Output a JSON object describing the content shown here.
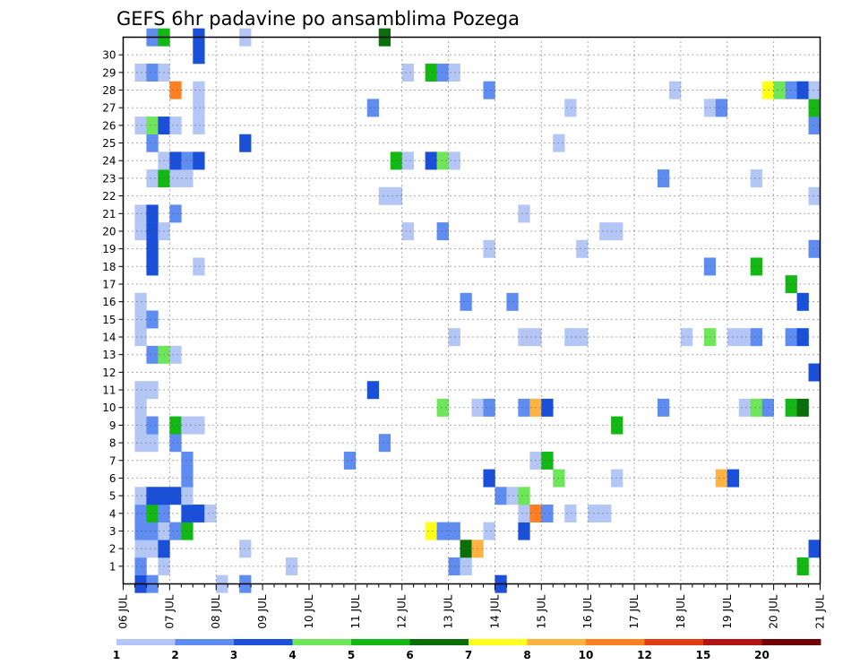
{
  "chart_data": {
    "type": "heatmap",
    "title": "GEFS 6hr padavine po ansamblima Pozega",
    "x_tick_labels": [
      "06 JUL",
      "07 JUL",
      "08 JUL",
      "09 JUL",
      "10 JUL",
      "11 JUL",
      "12 JUL",
      "13 JUL",
      "14 JUL",
      "15 JUL",
      "16 JUL",
      "17 JUL",
      "18 JUL",
      "19 JUL",
      "20 JUL",
      "21 JUL"
    ],
    "y_tick_labels": [
      "1",
      "2",
      "3",
      "4",
      "5",
      "6",
      "7",
      "8",
      "9",
      "10",
      "11",
      "12",
      "13",
      "14",
      "15",
      "16",
      "17",
      "18",
      "19",
      "20",
      "21",
      "22",
      "23",
      "24",
      "25",
      "26",
      "27",
      "28",
      "29",
      "30"
    ],
    "xlim": [
      0,
      60
    ],
    "ylim": [
      0,
      30
    ],
    "grid": true,
    "colorbar": {
      "labels": [
        "1",
        "2",
        "3",
        "4",
        "5",
        "6",
        "7",
        "8",
        "10",
        "12",
        "15",
        "20"
      ],
      "colors": [
        "#b3c6f5",
        "#5f8cf0",
        "#1a4fd9",
        "#6fe65a",
        "#14b814",
        "#0a6e0a",
        "#ffff1a",
        "#ffb340",
        "#ff8020",
        "#e23c14",
        "#b01414",
        "#700000"
      ]
    },
    "cells": [
      [
        1,
        0,
        3
      ],
      [
        2,
        0,
        2
      ],
      [
        8,
        0,
        1
      ],
      [
        10,
        0,
        2
      ],
      [
        32,
        0,
        3
      ],
      [
        1,
        1,
        2
      ],
      [
        3,
        1,
        1
      ],
      [
        14,
        1,
        1
      ],
      [
        28,
        1,
        2
      ],
      [
        29,
        1,
        1
      ],
      [
        58,
        1,
        5
      ],
      [
        1,
        2,
        1
      ],
      [
        2,
        2,
        1
      ],
      [
        3,
        2,
        3
      ],
      [
        10,
        2,
        1
      ],
      [
        29,
        2,
        6
      ],
      [
        30,
        2,
        8
      ],
      [
        59,
        2,
        3
      ],
      [
        1,
        3,
        2
      ],
      [
        2,
        3,
        2
      ],
      [
        3,
        3,
        1
      ],
      [
        4,
        3,
        2
      ],
      [
        5,
        3,
        5
      ],
      [
        26,
        3,
        7
      ],
      [
        27,
        3,
        2
      ],
      [
        28,
        3,
        2
      ],
      [
        31,
        3,
        1
      ],
      [
        34,
        3,
        3
      ],
      [
        1,
        4,
        2
      ],
      [
        2,
        4,
        5
      ],
      [
        3,
        4,
        2
      ],
      [
        5,
        4,
        3
      ],
      [
        6,
        4,
        3
      ],
      [
        7,
        4,
        1
      ],
      [
        34,
        4,
        1
      ],
      [
        35,
        4,
        9
      ],
      [
        36,
        4,
        2
      ],
      [
        38,
        4,
        1
      ],
      [
        40,
        4,
        1
      ],
      [
        41,
        4,
        1
      ],
      [
        1,
        5,
        1
      ],
      [
        2,
        5,
        3
      ],
      [
        3,
        5,
        3
      ],
      [
        4,
        5,
        3
      ],
      [
        5,
        5,
        1
      ],
      [
        32,
        5,
        2
      ],
      [
        33,
        5,
        1
      ],
      [
        34,
        5,
        4
      ],
      [
        5,
        6,
        2
      ],
      [
        31,
        6,
        3
      ],
      [
        37,
        6,
        4
      ],
      [
        42,
        6,
        1
      ],
      [
        51,
        6,
        8
      ],
      [
        52,
        6,
        3
      ],
      [
        5,
        7,
        2
      ],
      [
        19,
        7,
        2
      ],
      [
        35,
        7,
        1
      ],
      [
        36,
        7,
        5
      ],
      [
        1,
        8,
        1
      ],
      [
        2,
        8,
        1
      ],
      [
        4,
        8,
        2
      ],
      [
        22,
        8,
        2
      ],
      [
        1,
        9,
        1
      ],
      [
        2,
        9,
        2
      ],
      [
        4,
        9,
        5
      ],
      [
        5,
        9,
        1
      ],
      [
        6,
        9,
        1
      ],
      [
        42,
        9,
        5
      ],
      [
        1,
        10,
        1
      ],
      [
        27,
        10,
        4
      ],
      [
        30,
        10,
        1
      ],
      [
        31,
        10,
        2
      ],
      [
        34,
        10,
        2
      ],
      [
        35,
        10,
        8
      ],
      [
        36,
        10,
        3
      ],
      [
        46,
        10,
        2
      ],
      [
        53,
        10,
        1
      ],
      [
        54,
        10,
        4
      ],
      [
        55,
        10,
        2
      ],
      [
        57,
        10,
        5
      ],
      [
        58,
        10,
        6
      ],
      [
        1,
        11,
        1
      ],
      [
        2,
        11,
        1
      ],
      [
        21,
        11,
        3
      ],
      [
        59,
        12,
        3
      ],
      [
        2,
        13,
        2
      ],
      [
        3,
        13,
        4
      ],
      [
        4,
        13,
        1
      ],
      [
        1,
        14,
        1
      ],
      [
        28,
        14,
        1
      ],
      [
        34,
        14,
        1
      ],
      [
        35,
        14,
        1
      ],
      [
        38,
        14,
        1
      ],
      [
        39,
        14,
        1
      ],
      [
        48,
        14,
        1
      ],
      [
        50,
        14,
        4
      ],
      [
        52,
        14,
        1
      ],
      [
        53,
        14,
        1
      ],
      [
        54,
        14,
        2
      ],
      [
        57,
        14,
        2
      ],
      [
        58,
        14,
        3
      ],
      [
        1,
        15,
        1
      ],
      [
        2,
        15,
        2
      ],
      [
        1,
        16,
        1
      ],
      [
        29,
        16,
        2
      ],
      [
        33,
        16,
        2
      ],
      [
        58,
        16,
        3
      ],
      [
        57,
        17,
        5
      ],
      [
        2,
        18,
        3
      ],
      [
        6,
        18,
        1
      ],
      [
        50,
        18,
        2
      ],
      [
        54,
        18,
        5
      ],
      [
        2,
        19,
        3
      ],
      [
        31,
        19,
        1
      ],
      [
        39,
        19,
        1
      ],
      [
        59,
        19,
        2
      ],
      [
        1,
        20,
        1
      ],
      [
        2,
        20,
        3
      ],
      [
        3,
        20,
        1
      ],
      [
        24,
        20,
        1
      ],
      [
        27,
        20,
        2
      ],
      [
        41,
        20,
        1
      ],
      [
        42,
        20,
        1
      ],
      [
        1,
        21,
        1
      ],
      [
        2,
        21,
        3
      ],
      [
        4,
        21,
        2
      ],
      [
        34,
        21,
        1
      ],
      [
        22,
        22,
        1
      ],
      [
        23,
        22,
        1
      ],
      [
        59,
        22,
        1
      ],
      [
        2,
        23,
        1
      ],
      [
        3,
        23,
        5
      ],
      [
        4,
        23,
        1
      ],
      [
        5,
        23,
        1
      ],
      [
        46,
        23,
        2
      ],
      [
        54,
        23,
        1
      ],
      [
        3,
        24,
        1
      ],
      [
        4,
        24,
        3
      ],
      [
        5,
        24,
        2
      ],
      [
        6,
        24,
        3
      ],
      [
        23,
        24,
        5
      ],
      [
        24,
        24,
        1
      ],
      [
        26,
        24,
        3
      ],
      [
        27,
        24,
        4
      ],
      [
        28,
        24,
        1
      ],
      [
        2,
        25,
        2
      ],
      [
        10,
        25,
        3
      ],
      [
        37,
        25,
        1
      ],
      [
        1,
        26,
        1
      ],
      [
        2,
        26,
        4
      ],
      [
        3,
        26,
        3
      ],
      [
        4,
        26,
        1
      ],
      [
        6,
        26,
        1
      ],
      [
        59,
        26,
        2
      ],
      [
        6,
        27,
        1
      ],
      [
        21,
        27,
        2
      ],
      [
        38,
        27,
        1
      ],
      [
        50,
        27,
        1
      ],
      [
        51,
        27,
        2
      ],
      [
        59,
        27,
        5
      ],
      [
        4,
        28,
        9
      ],
      [
        6,
        28,
        1
      ],
      [
        31,
        28,
        2
      ],
      [
        47,
        28,
        1
      ],
      [
        55,
        28,
        7
      ],
      [
        56,
        28,
        4
      ],
      [
        57,
        28,
        2
      ],
      [
        58,
        28,
        3
      ],
      [
        59,
        28,
        1
      ],
      [
        1,
        29,
        1
      ],
      [
        2,
        29,
        2
      ],
      [
        3,
        29,
        1
      ],
      [
        24,
        29,
        1
      ],
      [
        26,
        29,
        5
      ],
      [
        27,
        29,
        2
      ],
      [
        28,
        29,
        1
      ],
      [
        6,
        30,
        3
      ],
      [
        2,
        31,
        2
      ],
      [
        3,
        31,
        5
      ],
      [
        6,
        31,
        3
      ],
      [
        10,
        31,
        1
      ],
      [
        22,
        31,
        6
      ]
    ]
  }
}
